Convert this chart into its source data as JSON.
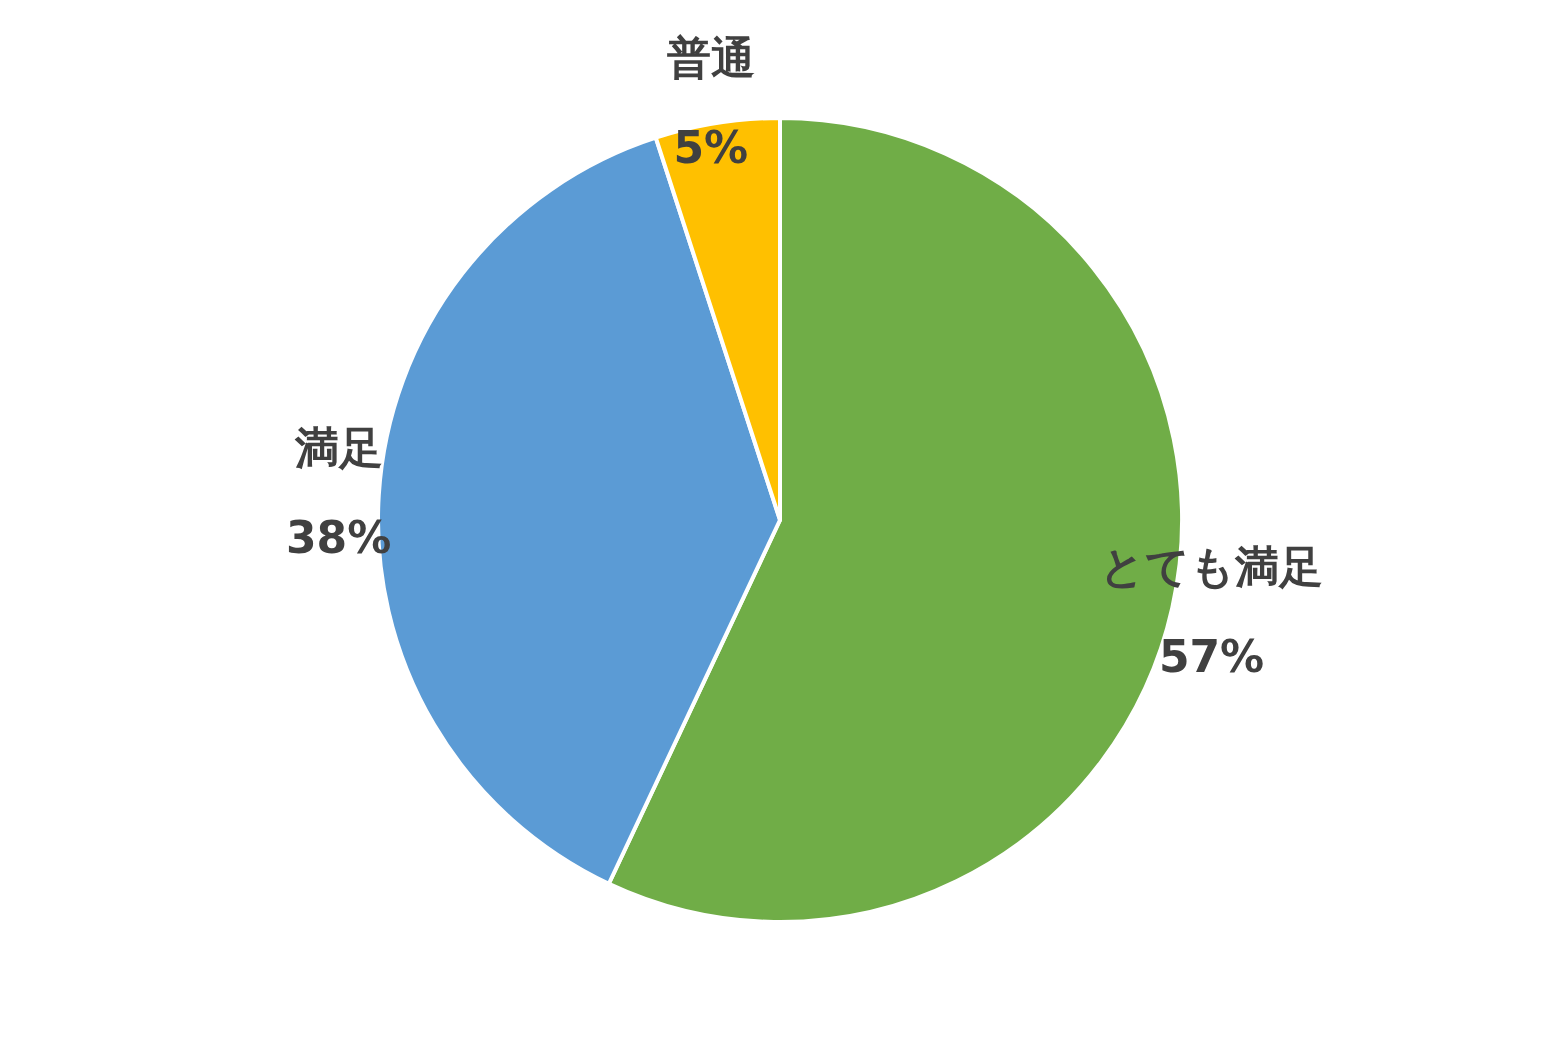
{
  "chart_data": {
    "type": "pie",
    "categories": [
      "とても満足",
      "満足",
      "普通"
    ],
    "values": [
      57,
      38,
      5
    ],
    "colors": [
      "#70ad47",
      "#5b9bd5",
      "#ffc000"
    ],
    "value_labels": [
      "57%",
      "38%",
      "5%"
    ]
  }
}
